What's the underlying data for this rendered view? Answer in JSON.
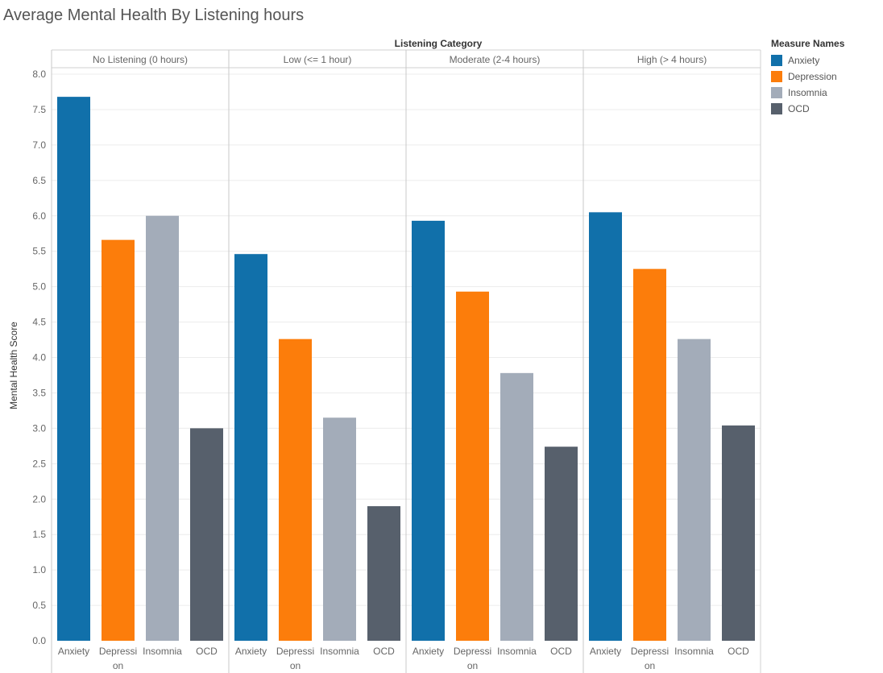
{
  "page_title": "Average Mental Health By Listening hours",
  "legend": {
    "title": "Measure Names",
    "items": [
      {
        "label": "Anxiety",
        "color": "#1170aa"
      },
      {
        "label": "Depression",
        "color": "#fc7d0b"
      },
      {
        "label": "Insomnia",
        "color": "#a3acb9"
      },
      {
        "label": "OCD",
        "color": "#57606c"
      }
    ]
  },
  "chart_data": {
    "type": "bar",
    "title": "Average Mental Health By Listening hours",
    "column_header": "Listening Category",
    "ylabel": "Mental Health Score",
    "ylim": [
      0,
      8.0
    ],
    "yticks": [
      "0.0",
      "0.5",
      "1.0",
      "1.5",
      "2.0",
      "2.5",
      "3.0",
      "3.5",
      "4.0",
      "4.5",
      "5.0",
      "5.5",
      "6.0",
      "6.5",
      "7.0",
      "7.5",
      "8.0"
    ],
    "measures": [
      "Anxiety",
      "Depression",
      "Insomnia",
      "OCD"
    ],
    "measure_tick_labels": [
      [
        "Anxiety"
      ],
      [
        "Depressi",
        "on"
      ],
      [
        "Insomnia"
      ],
      [
        "OCD"
      ]
    ],
    "grid": true,
    "legend_position": "right",
    "panels": [
      {
        "category": "No Listening (0 hours)",
        "values": [
          7.68,
          5.66,
          6.0,
          3.0
        ]
      },
      {
        "category": "Low (<= 1 hour)",
        "values": [
          5.46,
          4.26,
          3.15,
          1.9
        ]
      },
      {
        "category": "Moderate (2-4 hours)",
        "values": [
          5.93,
          4.93,
          3.78,
          2.74
        ]
      },
      {
        "category": "High (> 4 hours)",
        "values": [
          6.05,
          5.25,
          4.26,
          3.04
        ]
      }
    ]
  }
}
